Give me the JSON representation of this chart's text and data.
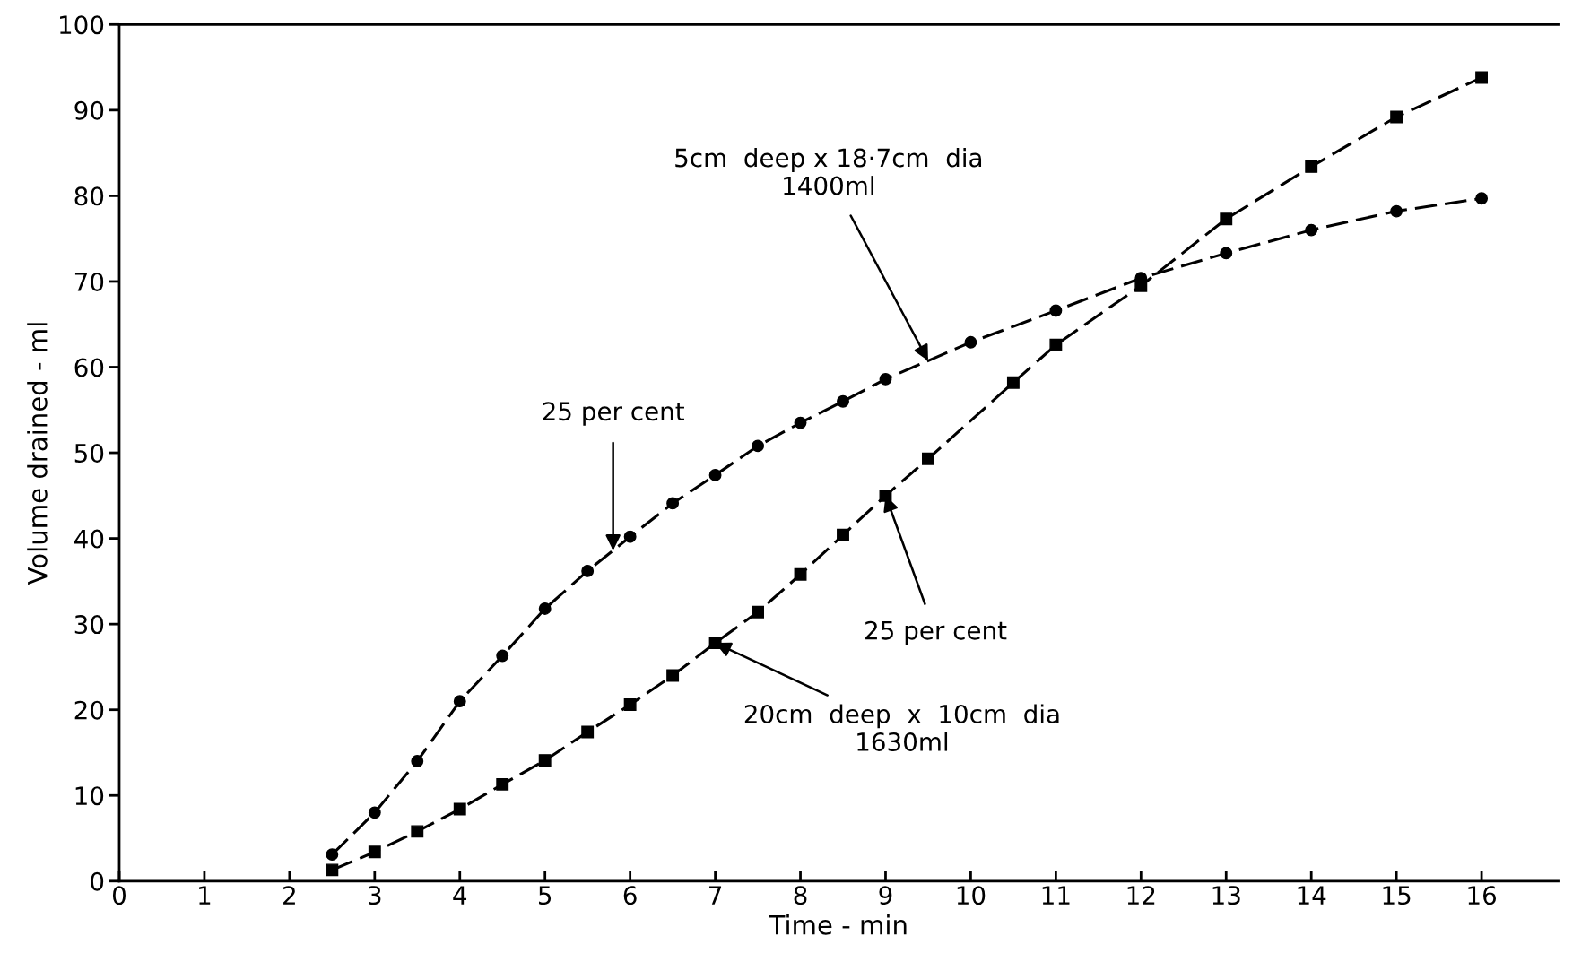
{
  "chart_data": {
    "type": "line",
    "xlabel": "Time - min",
    "ylabel": "Volume drained - ml",
    "xlim": [
      0,
      16.9
    ],
    "ylim": [
      0,
      100
    ],
    "xticks": [
      0,
      1,
      2,
      3,
      4,
      5,
      6,
      7,
      8,
      9,
      10,
      11,
      12,
      13,
      14,
      15,
      16
    ],
    "yticks": [
      0,
      10,
      20,
      30,
      40,
      50,
      60,
      70,
      80,
      90,
      100
    ],
    "grid": false,
    "line_style": "dashed",
    "series": [
      {
        "color": "#000000",
        "marker": "circle",
        "x": [
          2.5,
          3,
          3.5,
          4,
          4.5,
          5,
          5.5,
          6,
          6.5,
          7,
          7.5,
          8,
          8.5,
          9,
          10,
          11,
          12,
          13,
          14,
          15,
          16
        ],
        "values": [
          3.1,
          8,
          14,
          21,
          26.3,
          31.8,
          36.2,
          40.2,
          44.1,
          47.4,
          50.8,
          53.5,
          56,
          58.6,
          62.9,
          66.6,
          70.4,
          73.3,
          76,
          78.2,
          79.7
        ]
      },
      {
        "color": "#000000",
        "marker": "square",
        "x": [
          2.5,
          3,
          3.5,
          4,
          4.5,
          5,
          5.5,
          6,
          6.5,
          7,
          7.5,
          8,
          8.5,
          9,
          9.5,
          10.5,
          11,
          12,
          13,
          14,
          15,
          16
        ],
        "values": [
          1.3,
          3.4,
          5.8,
          8.4,
          11.3,
          14.1,
          17.4,
          20.6,
          24,
          27.8,
          31.4,
          35.8,
          40.4,
          45,
          49.3,
          58.2,
          62.6,
          69.5,
          77.3,
          83.4,
          89.2,
          93.8
        ]
      }
    ],
    "annotations": [
      {
        "text": "5cm  deep x 18·7cm  dia\n1400ml",
        "x": 9.5,
        "y": 60.75
      },
      {
        "text": "25 per cent",
        "x": 5.8,
        "y": 38.6
      },
      {
        "text": "25 per cent",
        "x": 9,
        "y": 45
      },
      {
        "text": "20cm  deep  x  10cm  dia\n1630ml",
        "x": 7,
        "y": 27.8
      }
    ]
  }
}
